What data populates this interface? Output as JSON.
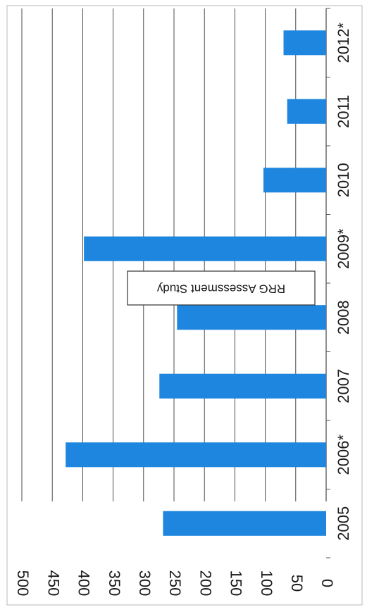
{
  "chart_data": {
    "type": "bar",
    "orientation": "rotated-90-clockwise",
    "categories": [
      "2005",
      "2006*",
      "2007",
      "2008",
      "2009*",
      "2010",
      "2011",
      "2012*"
    ],
    "series": [
      {
        "name": "RRG Assessment Study",
        "values": [
          268,
          428,
          274,
          245,
          398,
          103,
          64,
          70
        ],
        "color": "#1f86e0"
      }
    ],
    "ylim": [
      0,
      500
    ],
    "yticks": [
      "0",
      "50",
      "100",
      "150",
      "200",
      "250",
      "300",
      "350",
      "400",
      "450",
      "500"
    ],
    "grid": true,
    "legend_placement": "inside-center",
    "title": "",
    "xlabel": "",
    "ylabel": ""
  }
}
